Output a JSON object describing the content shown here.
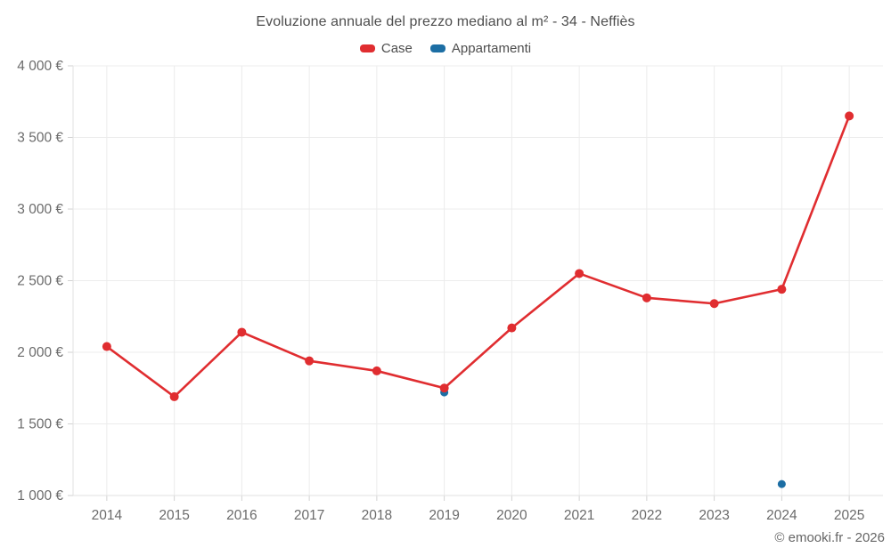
{
  "header": {
    "title": "Evoluzione annuale del prezzo mediano al m² - 34 - Neffiès"
  },
  "legend": {
    "items": [
      {
        "label": "Case",
        "color": "#e02d30"
      },
      {
        "label": "Appartamenti",
        "color": "#1c6ea4"
      }
    ]
  },
  "footer": {
    "copyright": "© emooki.fr - 2026"
  },
  "chart_data": {
    "type": "line",
    "title": "Evoluzione annuale del prezzo mediano al m² - 34 - Neffiès",
    "categories": [
      "2014",
      "2015",
      "2016",
      "2017",
      "2018",
      "2019",
      "2020",
      "2021",
      "2022",
      "2023",
      "2024",
      "2025"
    ],
    "series": [
      {
        "name": "Case",
        "color": "#e02d30",
        "point_radius": 5,
        "values": [
          2040,
          1690,
          2140,
          1940,
          1870,
          1750,
          2170,
          2550,
          2380,
          2340,
          2440,
          3650
        ]
      },
      {
        "name": "Appartamenti",
        "color": "#1c6ea4",
        "point_radius": 4.5,
        "values": [
          null,
          null,
          null,
          null,
          null,
          1720,
          null,
          null,
          null,
          null,
          1080,
          null
        ]
      }
    ],
    "xlabel": "",
    "ylabel": "",
    "ylim": [
      1000,
      4000
    ],
    "ytick_step": 500,
    "ytick_suffix": " €",
    "grid": true,
    "legend_position": "top"
  },
  "colors": {
    "background": "#ffffff",
    "grid": "#ececec",
    "axis": "#e2e2e2",
    "tick": "#d2d2d2",
    "axis_label": "#6b6b6b",
    "title_text": "#4e4e4e",
    "copyright_text": "#666666"
  }
}
